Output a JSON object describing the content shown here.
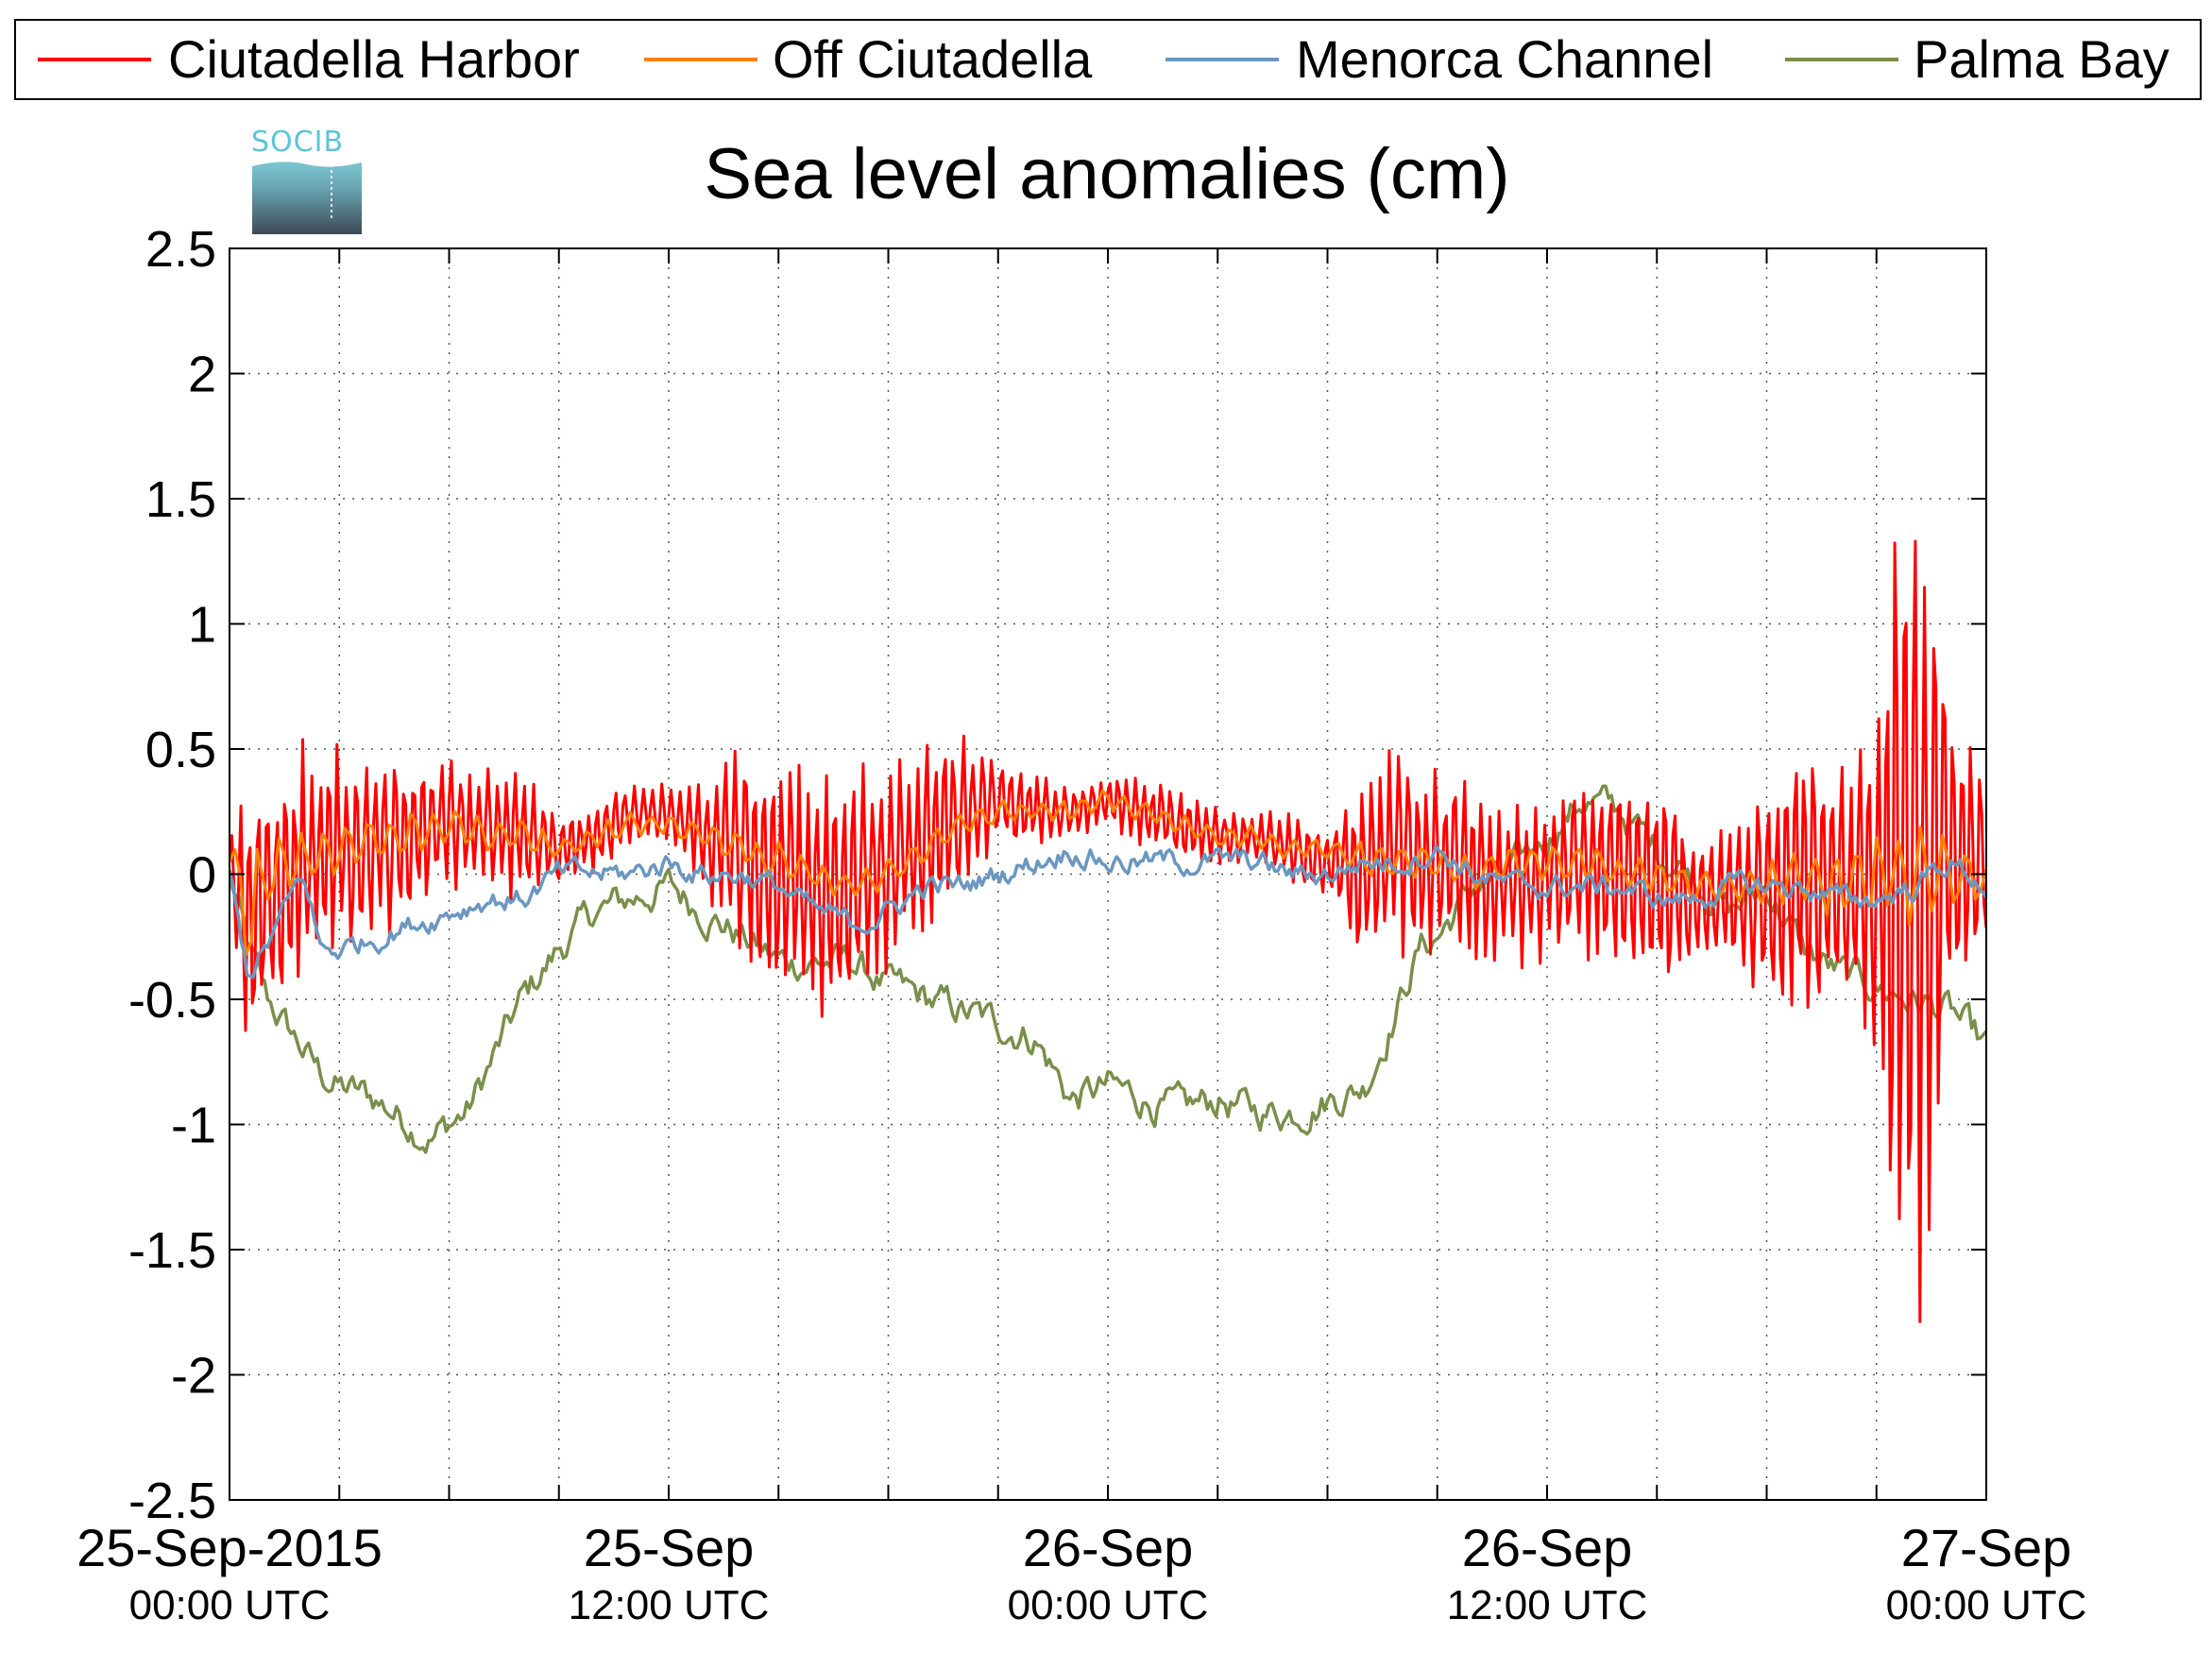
{
  "logo": {
    "text": "SOCIB"
  },
  "chart_data": {
    "type": "line",
    "title": "Sea level anomalies (cm)",
    "xlabel": "",
    "ylabel": "",
    "units": "cm",
    "ylim": [
      -2.5,
      2.5
    ],
    "yticks": [
      "2.5",
      "2",
      "1.5",
      "1",
      "0.5",
      "0",
      "-0.5",
      "-1",
      "-1.5",
      "-2",
      "-2.5"
    ],
    "x_range_hours": [
      0,
      48
    ],
    "x_unit": "hours since 25-Sep-2015 00:00 UTC",
    "x_tick_hours": [
      0,
      3,
      6,
      9,
      12,
      15,
      18,
      21,
      24,
      27,
      30,
      33,
      36,
      39,
      42,
      45,
      48
    ],
    "x_labels": [
      {
        "hour": 0,
        "date": "25-Sep-2015",
        "time": "00:00 UTC"
      },
      {
        "hour": 12,
        "date": "25-Sep",
        "time": "12:00 UTC"
      },
      {
        "hour": 24,
        "date": "26-Sep",
        "time": "00:00 UTC"
      },
      {
        "hour": 36,
        "date": "26-Sep",
        "time": "12:00 UTC"
      },
      {
        "hour": 48,
        "date": "27-Sep",
        "time": "00:00 UTC"
      }
    ],
    "grid": true,
    "legend_position": "top",
    "series": [
      {
        "name": "Ciutadella Harbor",
        "color": "#ff0000",
        "kind": "oscillating",
        "period_h": 0.25,
        "x": [
          0,
          0.5,
          1,
          2,
          3,
          4,
          5,
          6,
          7,
          8,
          9,
          10,
          11,
          12,
          13,
          14,
          15,
          16,
          17,
          18,
          19,
          20,
          21,
          22,
          23,
          24,
          25,
          26,
          27,
          28,
          29,
          30,
          31,
          32,
          33,
          34,
          35,
          36,
          37,
          38,
          39,
          40,
          41,
          42,
          43,
          44,
          45,
          45.5,
          46,
          46.5,
          47,
          48
        ],
        "center": [
          0.05,
          -0.2,
          -0.1,
          0.05,
          0.1,
          0.1,
          0.15,
          0.2,
          0.2,
          0.15,
          0.1,
          0.15,
          0.25,
          0.25,
          0.15,
          0.1,
          0.0,
          -0.1,
          -0.05,
          0.05,
          0.15,
          0.25,
          0.3,
          0.25,
          0.25,
          0.3,
          0.25,
          0.2,
          0.15,
          0.15,
          0.1,
          0.05,
          0.0,
          0.1,
          0.05,
          0.0,
          -0.05,
          0.0,
          0.05,
          0.0,
          -0.05,
          -0.1,
          -0.1,
          -0.1,
          0.0,
          -0.05,
          0.0,
          0.0,
          -0.1,
          0.05,
          0.1,
          0.05
        ],
        "amplitude": [
          0.15,
          0.55,
          0.55,
          0.5,
          0.45,
          0.4,
          0.35,
          0.3,
          0.25,
          0.3,
          0.15,
          0.15,
          0.12,
          0.12,
          0.25,
          0.45,
          0.55,
          0.5,
          0.55,
          0.45,
          0.45,
          0.35,
          0.2,
          0.15,
          0.12,
          0.12,
          0.15,
          0.15,
          0.12,
          0.12,
          0.15,
          0.15,
          0.4,
          0.45,
          0.4,
          0.4,
          0.35,
          0.35,
          0.4,
          0.4,
          0.45,
          0.3,
          0.3,
          0.45,
          0.6,
          0.6,
          0.8,
          1.6,
          1.9,
          1.5,
          0.6,
          0.4
        ]
      },
      {
        "name": "Off Ciutadella",
        "color": "#ff8000",
        "kind": "oscillating",
        "period_h": 0.6,
        "x": [
          0,
          0.5,
          1,
          2,
          3,
          4,
          5,
          6,
          7,
          8,
          9,
          10,
          11,
          12,
          13,
          14,
          15,
          16,
          17,
          18,
          19,
          20,
          21,
          22,
          23,
          24,
          25,
          26,
          27,
          28,
          29,
          30,
          31,
          32,
          33,
          34,
          35,
          36,
          37,
          38,
          39,
          40,
          41,
          42,
          43,
          44,
          45,
          46,
          47,
          48
        ],
        "center": [
          0.05,
          -0.15,
          0.0,
          0.05,
          0.1,
          0.15,
          0.15,
          0.2,
          0.15,
          0.15,
          0.1,
          0.15,
          0.2,
          0.2,
          0.15,
          0.1,
          0.05,
          0.0,
          -0.05,
          0.0,
          0.1,
          0.2,
          0.25,
          0.25,
          0.25,
          0.3,
          0.25,
          0.2,
          0.15,
          0.15,
          0.1,
          0.1,
          0.05,
          0.05,
          0.05,
          0.0,
          0.05,
          0.05,
          0.05,
          0.0,
          0.0,
          -0.05,
          -0.05,
          -0.05,
          0.0,
          -0.05,
          0.0,
          0.0,
          0.0,
          -0.05
        ],
        "amplitude": [
          0.1,
          0.3,
          0.2,
          0.12,
          0.1,
          0.1,
          0.1,
          0.08,
          0.08,
          0.08,
          0.06,
          0.06,
          0.05,
          0.05,
          0.06,
          0.08,
          0.08,
          0.06,
          0.06,
          0.06,
          0.06,
          0.05,
          0.05,
          0.05,
          0.05,
          0.05,
          0.05,
          0.05,
          0.05,
          0.05,
          0.05,
          0.05,
          0.08,
          0.08,
          0.08,
          0.08,
          0.08,
          0.08,
          0.08,
          0.08,
          0.08,
          0.08,
          0.08,
          0.1,
          0.12,
          0.15,
          0.2,
          0.22,
          0.15,
          0.1
        ]
      },
      {
        "name": "Menorca Channel",
        "color": "#6b97c0",
        "kind": "wiggly",
        "x": [
          0,
          0.5,
          1,
          1.5,
          2,
          2.5,
          3,
          4,
          5,
          6,
          7,
          8,
          9,
          10,
          11,
          12,
          13,
          14,
          15,
          16,
          17,
          18,
          19,
          20,
          21,
          22,
          23,
          24,
          25,
          26,
          27,
          28,
          29,
          30,
          31,
          32,
          33,
          34,
          35,
          36,
          37,
          38,
          39,
          40,
          41,
          42,
          43,
          44,
          45,
          46,
          47,
          48
        ],
        "y": [
          0.0,
          -0.4,
          -0.3,
          -0.15,
          0.0,
          -0.3,
          -0.3,
          -0.25,
          -0.2,
          -0.15,
          -0.1,
          -0.1,
          0.0,
          0.0,
          0.0,
          0.05,
          0.0,
          0.0,
          -0.05,
          -0.15,
          -0.2,
          -0.15,
          -0.05,
          -0.05,
          0.0,
          0.05,
          0.1,
          0.05,
          0.05,
          0.05,
          0.05,
          0.05,
          0.0,
          0.0,
          0.05,
          0.05,
          0.1,
          0.0,
          -0.05,
          -0.05,
          -0.05,
          -0.05,
          -0.1,
          -0.1,
          -0.05,
          -0.05,
          -0.05,
          -0.1,
          -0.1,
          -0.05,
          0.05,
          -0.05
        ],
        "noise": 0.04
      },
      {
        "name": "Palma Bay",
        "color": "#7a8f4b",
        "kind": "wiggly",
        "x": [
          0,
          0.5,
          1,
          1.5,
          2,
          2.5,
          3,
          4,
          5,
          5.5,
          6,
          6.5,
          7,
          8,
          9,
          10,
          11,
          12,
          13,
          14,
          15,
          16,
          17,
          18,
          19,
          20,
          21,
          22,
          23,
          24,
          25,
          26,
          27,
          28,
          29,
          30,
          31,
          32,
          32.5,
          33,
          34,
          35,
          36,
          37,
          38,
          39,
          40,
          41,
          42,
          43,
          44,
          45,
          46,
          47,
          48
        ],
        "y": [
          0.0,
          -0.3,
          -0.5,
          -0.6,
          -0.7,
          -0.8,
          -0.85,
          -0.9,
          -1.0,
          -1.05,
          -1.0,
          -0.95,
          -0.8,
          -0.5,
          -0.3,
          -0.15,
          -0.1,
          -0.05,
          -0.15,
          -0.25,
          -0.35,
          -0.35,
          -0.35,
          -0.45,
          -0.5,
          -0.55,
          -0.6,
          -0.65,
          -0.9,
          -0.85,
          -0.9,
          -0.95,
          -0.9,
          -0.95,
          -0.95,
          -0.9,
          -0.85,
          -0.5,
          -0.3,
          -0.25,
          -0.05,
          0.0,
          0.15,
          0.3,
          0.25,
          0.1,
          0.0,
          -0.15,
          -0.05,
          -0.3,
          -0.4,
          -0.45,
          -0.5,
          -0.55,
          -0.7
        ],
        "noise": 0.06
      }
    ]
  }
}
